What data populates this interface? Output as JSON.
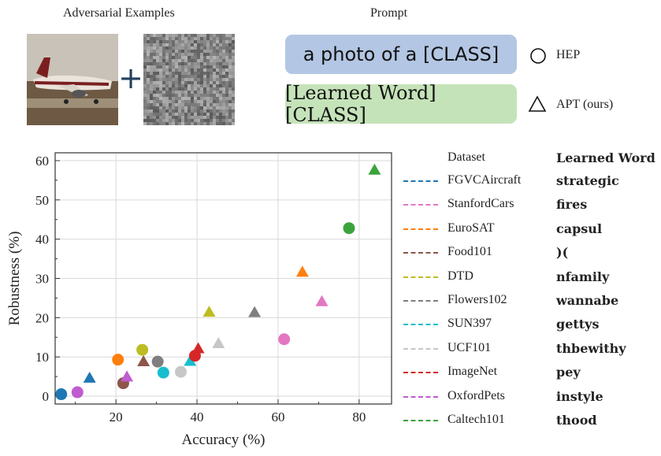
{
  "header": {
    "adversarial_title": "Adversarial Examples",
    "prompt_title": "Prompt",
    "plus": "+"
  },
  "prompts": {
    "hep_text": "a photo of a [CLASS]",
    "apt_text": "[Learned Word] [CLASS]",
    "hep_label": "HEP",
    "apt_label": "APT (ours)"
  },
  "legend": {
    "dataset_header": "Dataset",
    "word_header": "Learned Word"
  },
  "chart_data": {
    "type": "scatter",
    "xlabel": "Accuracy (%)",
    "ylabel": "Robustness (%)",
    "xlim": [
      5,
      88
    ],
    "ylim": [
      -2,
      62
    ],
    "xticks": [
      20,
      40,
      60,
      80
    ],
    "yticks": [
      0,
      10,
      20,
      30,
      40,
      50,
      60
    ],
    "grid": true,
    "legend_placement": "right",
    "markers": {
      "HEP": "circle",
      "APT (ours)": "triangle"
    },
    "series": [
      {
        "name": "FGVCAircraft",
        "learned_word": "strategic",
        "color": "#1f77b4",
        "points": [
          {
            "method": "HEP",
            "x": 6.5,
            "y": 0.5
          },
          {
            "method": "APT (ours)",
            "x": 13.5,
            "y": 4.5
          }
        ]
      },
      {
        "name": "StanfordCars",
        "learned_word": "fires",
        "color": "#e377c2",
        "points": [
          {
            "method": "HEP",
            "x": 61.5,
            "y": 14.5
          },
          {
            "method": "APT (ours)",
            "x": 70.8,
            "y": 24.0
          }
        ]
      },
      {
        "name": "EuroSAT",
        "learned_word": "capsul",
        "color": "#ff7f0e",
        "points": [
          {
            "method": "HEP",
            "x": 20.5,
            "y": 9.3
          },
          {
            "method": "APT (ours)",
            "x": 66.0,
            "y": 31.5
          }
        ]
      },
      {
        "name": "Food101",
        "learned_word": ")(",
        "color": "#8c564b",
        "points": [
          {
            "method": "HEP",
            "x": 21.8,
            "y": 3.3
          },
          {
            "method": "APT (ours)",
            "x": 26.8,
            "y": 8.7
          }
        ]
      },
      {
        "name": "DTD",
        "learned_word": "nfamily",
        "color": "#bcbd22",
        "points": [
          {
            "method": "HEP",
            "x": 26.5,
            "y": 11.8
          },
          {
            "method": "APT (ours)",
            "x": 43.0,
            "y": 21.3
          }
        ]
      },
      {
        "name": "Flowers102",
        "learned_word": "wannabe",
        "color": "#7f7f7f",
        "points": [
          {
            "method": "HEP",
            "x": 30.3,
            "y": 8.8
          },
          {
            "method": "APT (ours)",
            "x": 54.2,
            "y": 21.2
          }
        ]
      },
      {
        "name": "SUN397",
        "learned_word": "gettys",
        "color": "#17becf",
        "points": [
          {
            "method": "HEP",
            "x": 31.7,
            "y": 6.0
          },
          {
            "method": "APT (ours)",
            "x": 38.3,
            "y": 8.8
          }
        ]
      },
      {
        "name": "UCF101",
        "learned_word": "thbewithy",
        "color": "#c7c7c7",
        "points": [
          {
            "method": "HEP",
            "x": 36.0,
            "y": 6.2
          },
          {
            "method": "APT (ours)",
            "x": 45.3,
            "y": 13.3
          }
        ]
      },
      {
        "name": "ImageNet",
        "learned_word": "pey",
        "color": "#d62728",
        "points": [
          {
            "method": "HEP",
            "x": 39.5,
            "y": 10.3
          },
          {
            "method": "APT (ours)",
            "x": 40.3,
            "y": 12.0
          }
        ]
      },
      {
        "name": "OxfordPets",
        "learned_word": "instyle",
        "color": "#c15bd0",
        "points": [
          {
            "method": "HEP",
            "x": 10.5,
            "y": 1.0
          },
          {
            "method": "APT (ours)",
            "x": 22.7,
            "y": 4.8
          }
        ]
      },
      {
        "name": "Caltech101",
        "learned_word": "thood",
        "color": "#3ca33c",
        "points": [
          {
            "method": "HEP",
            "x": 77.5,
            "y": 42.8
          },
          {
            "method": "APT (ours)",
            "x": 83.8,
            "y": 57.5
          }
        ]
      }
    ]
  }
}
